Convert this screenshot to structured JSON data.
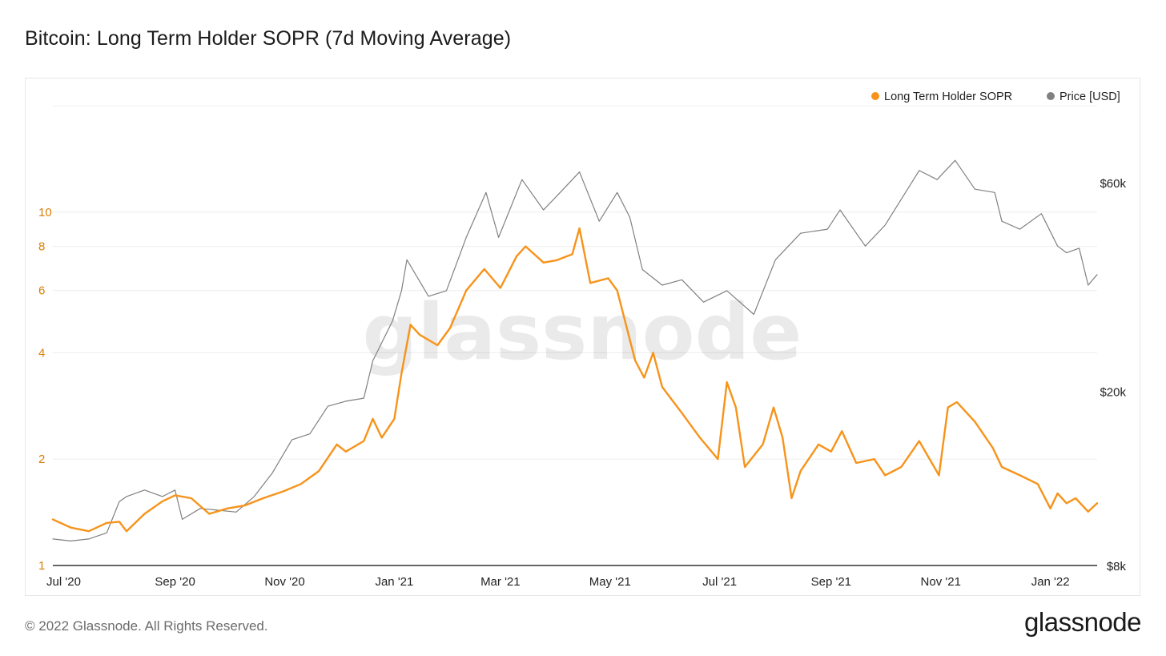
{
  "title": "Bitcoin: Long Term Holder SOPR (7d Moving Average)",
  "footer": {
    "copyright": "© 2022 Glassnode. All Rights Reserved.",
    "logo": "glassnode"
  },
  "watermark": "glassnode",
  "chart_data": {
    "type": "line",
    "legend_position": "top-right",
    "grid": true,
    "x_ticks": [
      "Jul '20",
      "Sep '20",
      "Nov '20",
      "Jan '21",
      "Mar '21",
      "May '21",
      "Jul '21",
      "Sep '21",
      "Nov '21",
      "Jan '22"
    ],
    "x_tick_dates": [
      "2020-07-01",
      "2020-09-01",
      "2020-11-01",
      "2021-01-01",
      "2021-03-01",
      "2021-05-01",
      "2021-07-01",
      "2021-09-01",
      "2021-11-01",
      "2022-01-01"
    ],
    "x_range": [
      "2020-06-25",
      "2022-01-27"
    ],
    "left_axis": {
      "scale": "log",
      "ticks": [
        "1",
        "2",
        "4",
        "6",
        "8",
        "10"
      ],
      "range": [
        1,
        20
      ],
      "color": "#d97f06"
    },
    "right_axis": {
      "scale": "log",
      "ticks": [
        "$8k",
        "$20k",
        "$60k"
      ],
      "range": [
        8000,
        90000
      ],
      "color": "#222222"
    },
    "series": [
      {
        "name": "Long Term Holder SOPR",
        "color": "#f7931a",
        "axis": "left",
        "points": [
          [
            "2020-06-25",
            1.35
          ],
          [
            "2020-07-05",
            1.28
          ],
          [
            "2020-07-15",
            1.25
          ],
          [
            "2020-07-25",
            1.32
          ],
          [
            "2020-08-01",
            1.33
          ],
          [
            "2020-08-05",
            1.25
          ],
          [
            "2020-08-15",
            1.4
          ],
          [
            "2020-08-25",
            1.52
          ],
          [
            "2020-09-01",
            1.58
          ],
          [
            "2020-09-10",
            1.55
          ],
          [
            "2020-09-20",
            1.4
          ],
          [
            "2020-09-30",
            1.45
          ],
          [
            "2020-10-10",
            1.48
          ],
          [
            "2020-10-20",
            1.55
          ],
          [
            "2020-10-31",
            1.62
          ],
          [
            "2020-11-10",
            1.7
          ],
          [
            "2020-11-20",
            1.85
          ],
          [
            "2020-11-30",
            2.2
          ],
          [
            "2020-12-05",
            2.1
          ],
          [
            "2020-12-15",
            2.25
          ],
          [
            "2020-12-20",
            2.6
          ],
          [
            "2020-12-25",
            2.3
          ],
          [
            "2021-01-01",
            2.6
          ],
          [
            "2021-01-05",
            3.5
          ],
          [
            "2021-01-10",
            4.8
          ],
          [
            "2021-01-15",
            4.5
          ],
          [
            "2021-01-25",
            4.2
          ],
          [
            "2021-02-01",
            4.7
          ],
          [
            "2021-02-10",
            6.0
          ],
          [
            "2021-02-20",
            6.9
          ],
          [
            "2021-03-01",
            6.1
          ],
          [
            "2021-03-10",
            7.5
          ],
          [
            "2021-03-15",
            8.0
          ],
          [
            "2021-03-25",
            7.2
          ],
          [
            "2021-04-01",
            7.3
          ],
          [
            "2021-04-10",
            7.6
          ],
          [
            "2021-04-14",
            9.0
          ],
          [
            "2021-04-20",
            6.3
          ],
          [
            "2021-04-30",
            6.5
          ],
          [
            "2021-05-05",
            6.0
          ],
          [
            "2021-05-15",
            3.8
          ],
          [
            "2021-05-20",
            3.4
          ],
          [
            "2021-05-25",
            4.0
          ],
          [
            "2021-05-30",
            3.2
          ],
          [
            "2021-06-10",
            2.7
          ],
          [
            "2021-06-20",
            2.3
          ],
          [
            "2021-06-30",
            2.0
          ],
          [
            "2021-07-05",
            3.3
          ],
          [
            "2021-07-10",
            2.8
          ],
          [
            "2021-07-15",
            1.9
          ],
          [
            "2021-07-25",
            2.2
          ],
          [
            "2021-07-31",
            2.8
          ],
          [
            "2021-08-05",
            2.3
          ],
          [
            "2021-08-10",
            1.55
          ],
          [
            "2021-08-15",
            1.85
          ],
          [
            "2021-08-25",
            2.2
          ],
          [
            "2021-09-01",
            2.1
          ],
          [
            "2021-09-07",
            2.4
          ],
          [
            "2021-09-15",
            1.95
          ],
          [
            "2021-09-25",
            2.0
          ],
          [
            "2021-10-01",
            1.8
          ],
          [
            "2021-10-10",
            1.9
          ],
          [
            "2021-10-20",
            2.25
          ],
          [
            "2021-10-31",
            1.8
          ],
          [
            "2021-11-05",
            2.8
          ],
          [
            "2021-11-10",
            2.9
          ],
          [
            "2021-11-20",
            2.55
          ],
          [
            "2021-11-30",
            2.15
          ],
          [
            "2021-12-05",
            1.9
          ],
          [
            "2021-12-15",
            1.8
          ],
          [
            "2021-12-25",
            1.7
          ],
          [
            "2022-01-01",
            1.45
          ],
          [
            "2022-01-05",
            1.6
          ],
          [
            "2022-01-10",
            1.5
          ],
          [
            "2022-01-15",
            1.55
          ],
          [
            "2022-01-22",
            1.42
          ],
          [
            "2022-01-27",
            1.5
          ]
        ]
      },
      {
        "name": "Price [USD]",
        "color": "#808080",
        "axis": "right",
        "points": [
          [
            "2020-06-25",
            9200
          ],
          [
            "2020-07-05",
            9100
          ],
          [
            "2020-07-15",
            9200
          ],
          [
            "2020-07-25",
            9500
          ],
          [
            "2020-08-01",
            11200
          ],
          [
            "2020-08-05",
            11500
          ],
          [
            "2020-08-15",
            11900
          ],
          [
            "2020-08-25",
            11500
          ],
          [
            "2020-09-01",
            11900
          ],
          [
            "2020-09-05",
            10200
          ],
          [
            "2020-09-15",
            10800
          ],
          [
            "2020-09-25",
            10700
          ],
          [
            "2020-10-05",
            10600
          ],
          [
            "2020-10-15",
            11500
          ],
          [
            "2020-10-25",
            13000
          ],
          [
            "2020-11-05",
            15500
          ],
          [
            "2020-11-15",
            16000
          ],
          [
            "2020-11-25",
            18500
          ],
          [
            "2020-12-05",
            19000
          ],
          [
            "2020-12-15",
            19300
          ],
          [
            "2020-12-20",
            23500
          ],
          [
            "2020-12-31",
            29000
          ],
          [
            "2021-01-05",
            34000
          ],
          [
            "2021-01-08",
            40000
          ],
          [
            "2021-01-20",
            33000
          ],
          [
            "2021-01-30",
            34000
          ],
          [
            "2021-02-10",
            45000
          ],
          [
            "2021-02-21",
            57000
          ],
          [
            "2021-02-28",
            45000
          ],
          [
            "2021-03-13",
            61000
          ],
          [
            "2021-03-25",
            52000
          ],
          [
            "2021-04-05",
            58000
          ],
          [
            "2021-04-14",
            63500
          ],
          [
            "2021-04-25",
            49000
          ],
          [
            "2021-05-05",
            57000
          ],
          [
            "2021-05-12",
            50000
          ],
          [
            "2021-05-19",
            38000
          ],
          [
            "2021-05-30",
            35000
          ],
          [
            "2021-06-10",
            36000
          ],
          [
            "2021-06-22",
            32000
          ],
          [
            "2021-07-05",
            34000
          ],
          [
            "2021-07-20",
            30000
          ],
          [
            "2021-08-01",
            40000
          ],
          [
            "2021-08-15",
            46000
          ],
          [
            "2021-08-30",
            47000
          ],
          [
            "2021-09-06",
            52000
          ],
          [
            "2021-09-20",
            43000
          ],
          [
            "2021-10-01",
            48000
          ],
          [
            "2021-10-10",
            55000
          ],
          [
            "2021-10-20",
            64000
          ],
          [
            "2021-10-30",
            61000
          ],
          [
            "2021-11-09",
            67500
          ],
          [
            "2021-11-20",
            58000
          ],
          [
            "2021-12-01",
            57000
          ],
          [
            "2021-12-05",
            49000
          ],
          [
            "2021-12-15",
            47000
          ],
          [
            "2021-12-27",
            51000
          ],
          [
            "2022-01-05",
            43000
          ],
          [
            "2022-01-10",
            41500
          ],
          [
            "2022-01-17",
            42500
          ],
          [
            "2022-01-22",
            35000
          ],
          [
            "2022-01-27",
            37000
          ]
        ]
      }
    ]
  }
}
